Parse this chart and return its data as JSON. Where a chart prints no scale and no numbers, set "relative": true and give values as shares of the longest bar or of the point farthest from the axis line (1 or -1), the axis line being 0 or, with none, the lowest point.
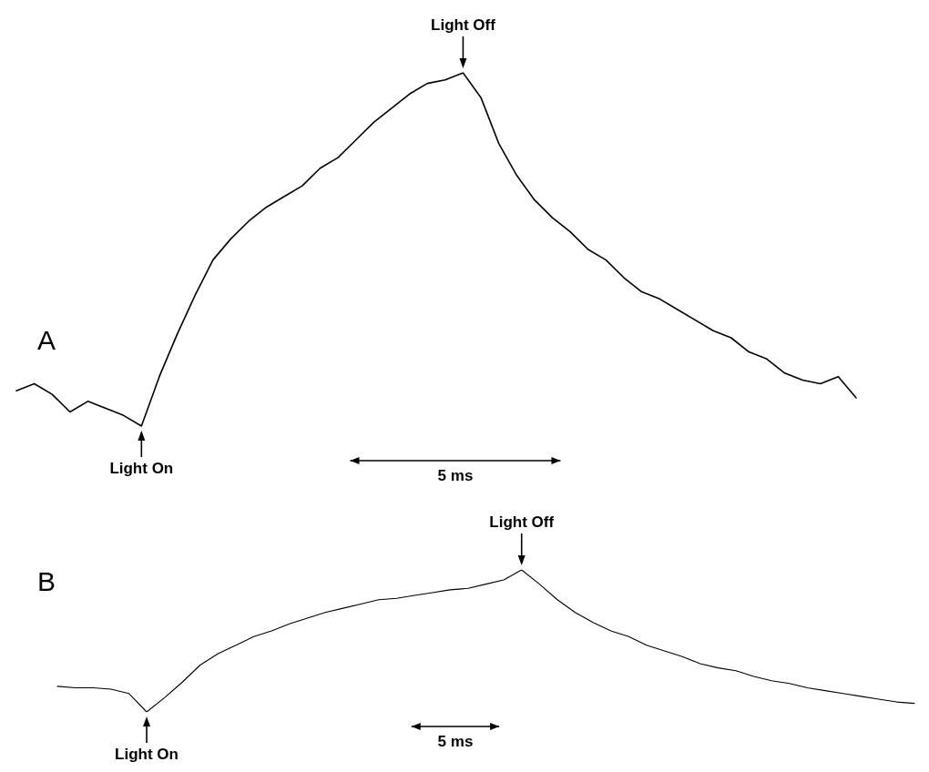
{
  "chart_data": [
    {
      "type": "line",
      "title": "A",
      "relative": true,
      "marker": "none",
      "annotations": [
        "Light On",
        "Light Off",
        "5 ms"
      ],
      "categories": [
        null,
        null,
        null,
        null,
        null,
        null,
        null,
        null,
        null,
        null,
        null,
        null,
        null,
        null,
        null,
        null,
        null,
        null,
        null,
        null,
        null,
        null,
        null,
        null,
        null,
        null,
        null,
        null,
        null,
        null,
        null,
        null,
        null,
        null,
        null,
        null,
        null,
        null,
        null,
        null,
        null,
        null,
        null,
        null,
        null,
        null,
        null,
        null
      ],
      "series": [
        {
          "color": "#000000",
          "values": [
            0.1,
            0.12,
            0.09,
            0.04,
            0.07,
            0.05,
            0.03,
            0,
            0.14,
            0.26,
            0.37,
            0.47,
            0.53,
            0.58,
            0.62,
            0.65,
            0.68,
            0.73,
            0.76,
            0.81,
            0.86,
            0.9,
            0.94,
            0.97,
            0.98,
            1,
            0.93,
            0.8,
            0.71,
            0.64,
            0.59,
            0.55,
            0.5,
            0.47,
            0.42,
            0.38,
            0.36,
            0.33,
            0.3,
            0.27,
            0.25,
            0.21,
            0.19,
            0.15,
            0.13,
            0.12,
            0.14,
            0.08
          ]
        }
      ]
    },
    {
      "type": "line",
      "title": "B",
      "relative": true,
      "marker": "none",
      "annotations": [
        "Light On",
        "Light Off",
        "5 ms"
      ],
      "categories": [
        null,
        null,
        null,
        null,
        null,
        null,
        null,
        null,
        null,
        null,
        null,
        null,
        null,
        null,
        null,
        null,
        null,
        null,
        null,
        null,
        null,
        null,
        null,
        null,
        null,
        null,
        null,
        null,
        null,
        null,
        null,
        null,
        null,
        null,
        null,
        null,
        null,
        null,
        null,
        null,
        null,
        null,
        null,
        null,
        null,
        null,
        null,
        null,
        null
      ],
      "series": [
        {
          "color": "#000000",
          "values": [
            0.18,
            0.17,
            0.17,
            0.16,
            0.13,
            0,
            0.1,
            0.21,
            0.33,
            0.41,
            0.47,
            0.53,
            0.57,
            0.62,
            0.66,
            0.7,
            0.73,
            0.76,
            0.79,
            0.8,
            0.82,
            0.84,
            0.86,
            0.87,
            0.9,
            0.93,
            1,
            0.9,
            0.79,
            0.7,
            0.63,
            0.57,
            0.53,
            0.47,
            0.43,
            0.39,
            0.34,
            0.31,
            0.29,
            0.25,
            0.22,
            0.2,
            0.17,
            0.15,
            0.13,
            0.11,
            0.09,
            0.07,
            0.06
          ]
        }
      ]
    }
  ]
}
